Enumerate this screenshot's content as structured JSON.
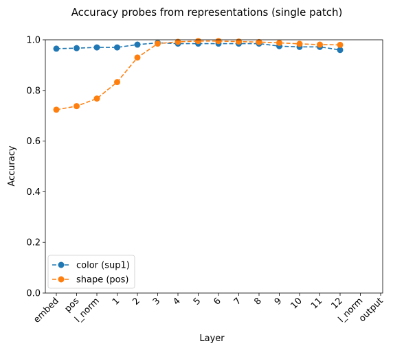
{
  "chart_data": {
    "type": "line",
    "title": "Accuracy probes from representations (single patch)",
    "xlabel": "Layer",
    "ylabel": "Accuracy",
    "ylim": [
      0.0,
      1.0
    ],
    "yticks": [
      "0.0",
      "0.2",
      "0.4",
      "0.6",
      "0.8",
      "1.0"
    ],
    "categories": [
      "embed",
      "pos",
      "l_norm",
      "1",
      "2",
      "3",
      "4",
      "5",
      "6",
      "7",
      "8",
      "9",
      "10",
      "11",
      "12",
      "l_norm",
      "output"
    ],
    "legend_position": "lower-left",
    "grid": false,
    "series": [
      {
        "name": "color (sup1)",
        "color": "#1f77b4",
        "style": "dashed",
        "marker": "circle",
        "values": [
          0.965,
          0.967,
          0.97,
          0.97,
          0.981,
          0.988,
          0.985,
          0.985,
          0.985,
          0.985,
          0.985,
          0.975,
          0.972,
          0.972,
          0.96,
          null,
          null
        ]
      },
      {
        "name": "shape (pos)",
        "color": "#ff7f0e",
        "style": "dashed",
        "marker": "circle",
        "values": [
          0.724,
          0.738,
          0.768,
          0.833,
          0.93,
          0.985,
          0.992,
          0.995,
          0.995,
          0.993,
          0.991,
          0.988,
          0.984,
          0.981,
          0.98,
          null,
          null
        ]
      }
    ]
  }
}
